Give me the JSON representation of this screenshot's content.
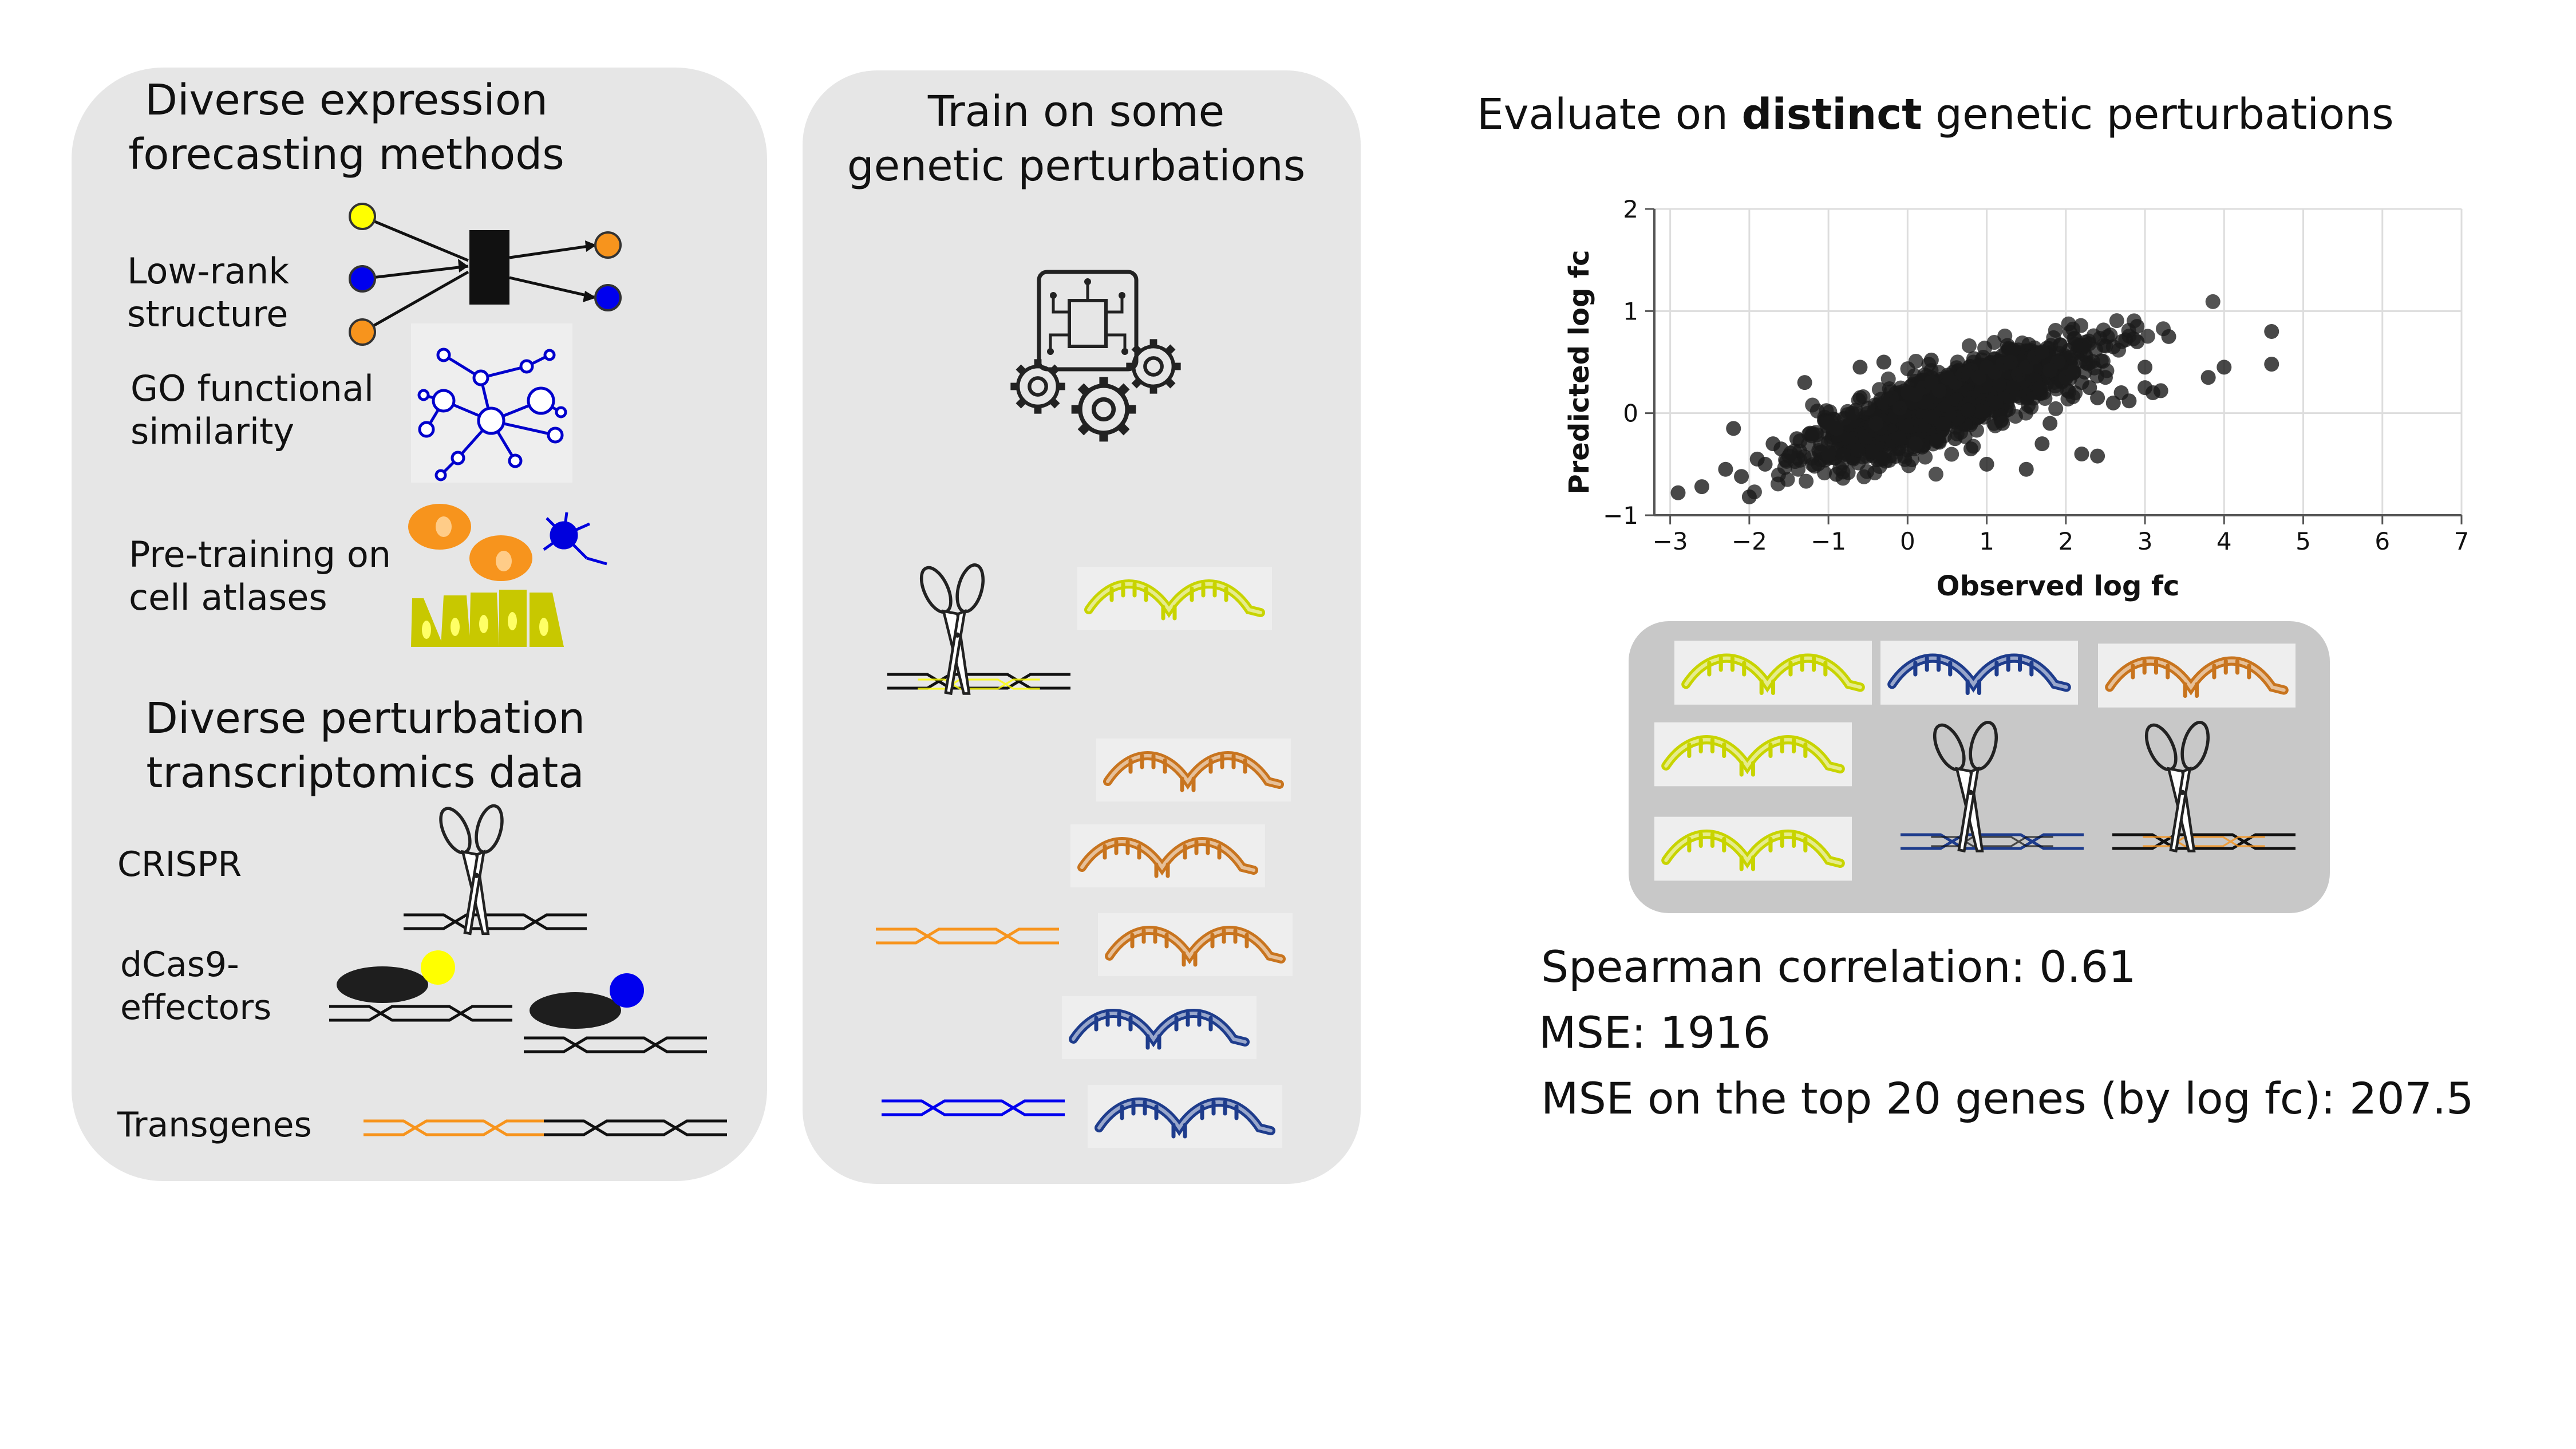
{
  "panel1": {
    "title_line1": "Diverse expression",
    "title_line2": "forecasting methods",
    "methods": [
      {
        "line1": "Low-rank",
        "line2": "structure"
      },
      {
        "line1": "GO functional",
        "line2": "similarity"
      },
      {
        "line1": "Pre-training on",
        "line2": "cell atlases"
      }
    ],
    "data_title_line1": "Diverse perturbation",
    "data_title_line2": "transcriptomics data",
    "data_types": [
      {
        "line1": "CRISPR",
        "line2": ""
      },
      {
        "line1": "dCas9-",
        "line2": "effectors"
      },
      {
        "line1": "Transgenes",
        "line2": ""
      }
    ]
  },
  "panel2": {
    "title_line1": "Train on some",
    "title_line2": "genetic perturbations"
  },
  "panel3": {
    "title_pre": "Evaluate on ",
    "title_bold": "distinct",
    "title_post": " genetic perturbations"
  },
  "metrics": [
    "Spearman correlation: 0.61",
    "MSE: 1916",
    "MSE on the top 20 genes (by log fc): 207.5"
  ],
  "colors": {
    "panel_bg": "#e6e6e6",
    "eval_box_bg": "#c8c8c8",
    "yellow": "#ffff00",
    "blue": "#0000ee",
    "orange": "#f7941d",
    "olive": "#c8c800",
    "rna_yellow": "#c8d400",
    "rna_orange": "#c8741e",
    "rna_blue": "#1e3c8c",
    "point": "#1a1a1a"
  },
  "icons": [
    "network-node-icon",
    "gene-network-icon",
    "cell-atlas-icon",
    "scissors-icon",
    "dna-icon",
    "rna-icon",
    "circuit-gears-icon",
    "dcas9-effector-icon"
  ],
  "chart_data": {
    "type": "scatter",
    "xlabel": "Observed log fc",
    "ylabel": "Predicted log fc",
    "xlim": [
      -3.2,
      7
    ],
    "ylim": [
      -1,
      2
    ],
    "xticks": [
      -3,
      -2,
      -1,
      0,
      1,
      2,
      3,
      4,
      5,
      6,
      7
    ],
    "yticks": [
      -1,
      0,
      1,
      2
    ],
    "xtick_labels": [
      "−3",
      "−2",
      "−1",
      "0",
      "1",
      "2",
      "3",
      "4",
      "5",
      "6",
      "7"
    ],
    "ytick_labels": [
      "−1",
      "0",
      "1",
      "2"
    ],
    "grid": true,
    "series": [
      {
        "x": [
          -2.9,
          -2.0,
          -2.6,
          -2.3,
          -2.1,
          -1.9,
          -1.8,
          -1.6,
          -1.5,
          -1.4,
          -1.2,
          -1.1,
          -1.0,
          -0.9,
          -0.8,
          -0.7,
          -0.5,
          -0.4,
          -0.3,
          -0.2,
          -0.1,
          0.0,
          0.1,
          0.2,
          0.3,
          0.4,
          0.5,
          0.6,
          0.7,
          0.8,
          0.9,
          1.0,
          1.1,
          1.2,
          1.3,
          1.4,
          1.5,
          1.6,
          1.7,
          1.8,
          1.9,
          2.0,
          2.1,
          2.2,
          2.3,
          2.4,
          2.5,
          2.6,
          2.7,
          2.8,
          2.9,
          3.0,
          3.1,
          3.2,
          3.3,
          3.8,
          4.0,
          4.6,
          4.6,
          2.4,
          1.5,
          1.0,
          2.6,
          -1.3,
          -0.6,
          0.3,
          -0.9,
          0.8,
          1.7,
          2.2,
          3.0,
          2.9,
          -2.2,
          -1.7,
          -1.0,
          0.1,
          0.6,
          1.2,
          1.8,
          -0.3
        ],
        "y": [
          -0.78,
          -0.82,
          -0.72,
          -0.55,
          -0.62,
          -0.45,
          -0.5,
          -0.35,
          -0.42,
          -0.25,
          -0.2,
          -0.3,
          -0.1,
          -0.15,
          -0.05,
          0.0,
          0.05,
          -0.1,
          0.1,
          0.15,
          0.05,
          0.2,
          0.18,
          0.25,
          0.3,
          0.22,
          0.35,
          0.3,
          0.38,
          0.42,
          0.35,
          0.45,
          0.4,
          0.48,
          0.5,
          0.38,
          0.45,
          0.55,
          0.6,
          0.42,
          0.5,
          0.35,
          0.4,
          0.3,
          0.25,
          0.15,
          0.35,
          0.1,
          0.2,
          0.12,
          0.85,
          0.45,
          0.2,
          0.22,
          0.75,
          0.35,
          0.45,
          0.8,
          0.48,
          -0.42,
          -0.55,
          -0.5,
          0.65,
          0.3,
          0.45,
          0.52,
          -0.6,
          -0.35,
          -0.3,
          -0.4,
          0.25,
          0.7,
          -0.15,
          -0.3,
          -0.4,
          -0.3,
          -0.25,
          -0.1,
          -0.1,
          0.5
        ]
      }
    ]
  }
}
